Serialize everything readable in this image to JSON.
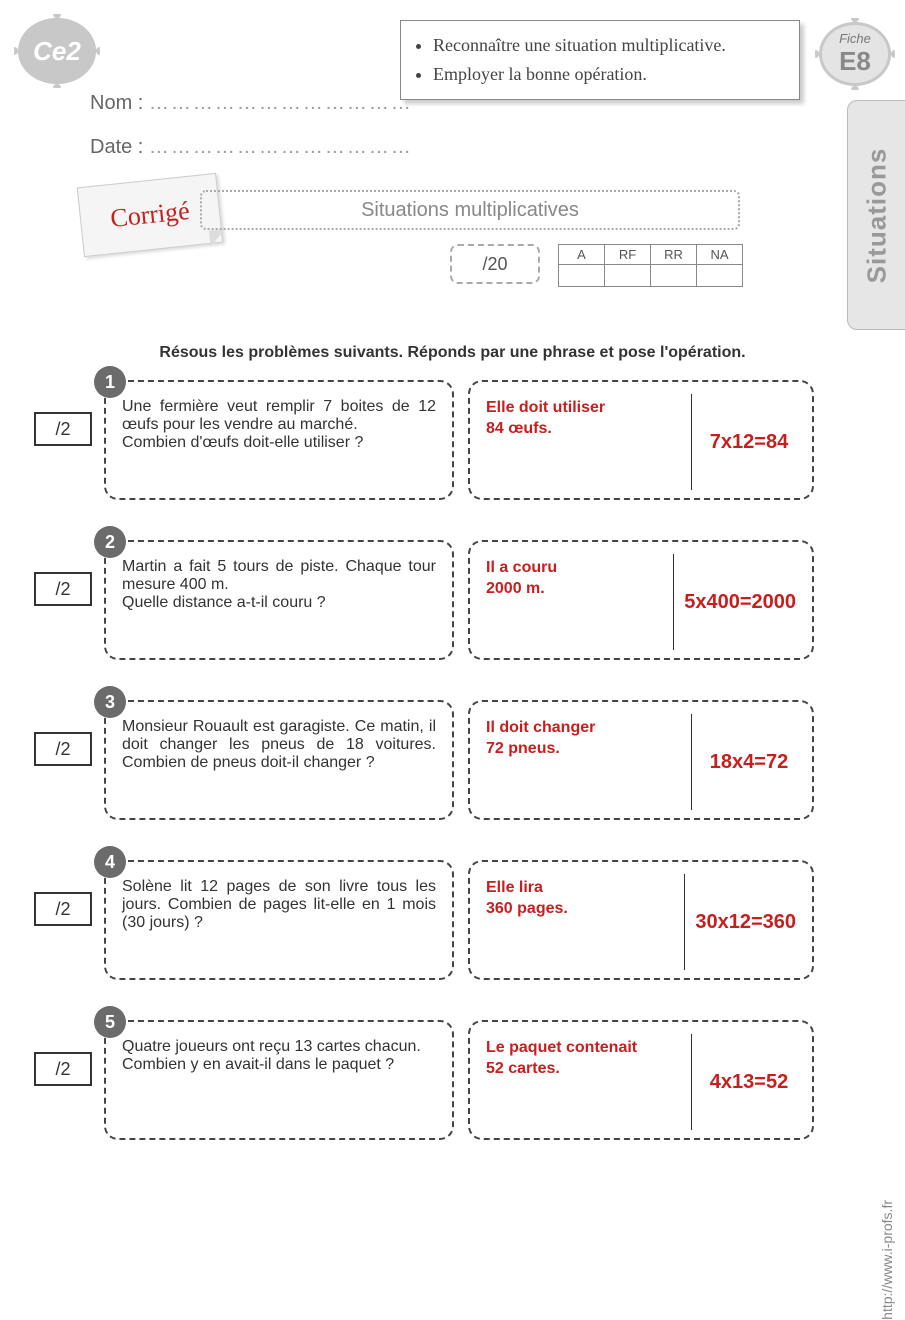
{
  "badge_level": "Ce2",
  "fiche_label": "Fiche",
  "fiche_code": "E8",
  "side_tab": "Situations",
  "objectives": [
    "Reconnaître une situation multiplicative.",
    "Employer la bonne opération."
  ],
  "name_label": "Nom :",
  "date_label": "Date :",
  "dots": "………………………………",
  "corrige": "Corrigé",
  "title": "Situations multiplicatives",
  "total_score": "/20",
  "rubric_headers": [
    "A",
    "RF",
    "RR",
    "NA"
  ],
  "instruction": "Résous les problèmes suivants. Réponds par une phrase et pose l'opération.",
  "footer_url": "http://www.i-profs.fr",
  "problems": [
    {
      "n": "1",
      "pts": "/2",
      "q": "Une fermière veut remplir 7 boites de 12 œufs pour les vendre au marché.\nCombien d'œufs doit-elle utiliser ?",
      "ans": "Elle doit utiliser\n84 œufs.",
      "op": "7x12=84"
    },
    {
      "n": "2",
      "pts": "/2",
      "q": "Martin a fait 5 tours de piste. Chaque tour mesure 400 m.\nQuelle distance a-t-il couru ?",
      "ans": "Il a couru\n2000 m.",
      "op": "5x400=2000"
    },
    {
      "n": "3",
      "pts": "/2",
      "q": "Monsieur Rouault est garagiste. Ce matin, il doit changer les pneus de 18 voitures. Combien de pneus doit-il changer ?",
      "ans": "Il doit changer\n72 pneus.",
      "op": "18x4=72"
    },
    {
      "n": "4",
      "pts": "/2",
      "q": "Solène lit 12 pages de son livre tous les jours. Combien de pages lit-elle en 1 mois (30 jours) ?",
      "ans": "Elle lira\n360 pages.",
      "op": "30x12=360"
    },
    {
      "n": "5",
      "pts": "/2",
      "q": "Quatre joueurs ont reçu 13 cartes chacun.\nCombien y en avait-il dans le paquet ?",
      "ans": "Le paquet contenait\n52 cartes.",
      "op": "4x13=52"
    }
  ]
}
